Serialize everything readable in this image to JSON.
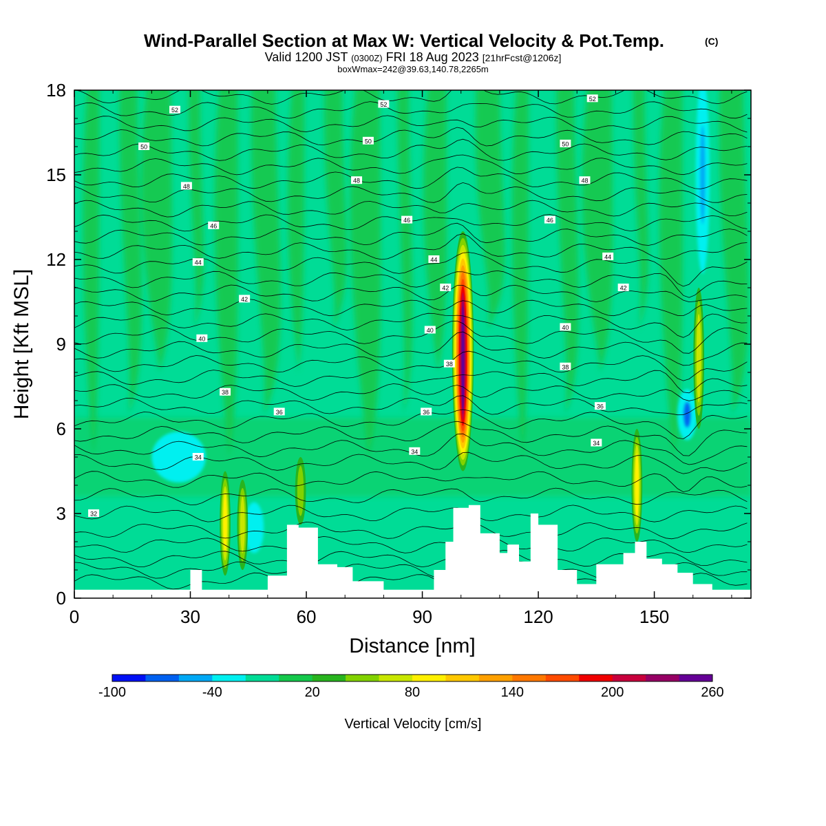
{
  "chart_data": {
    "type": "heatmap",
    "title": "Wind-Parallel Section at Max W: Vertical Velocity & Pot.Temp.",
    "title_mark": "(C)",
    "subtitle": {
      "valid": "Valid 1200 JST",
      "utc": "(0300Z)",
      "date": "FRI 18 Aug 2023",
      "forecast": "[21hrFcst@1206z]"
    },
    "box_wmax": "boxWmax=242@39.63,140.78,2265m",
    "xlabel": "Distance [nm]",
    "ylabel": "Height [Kft MSL]",
    "xlim": [
      0,
      175
    ],
    "ylim": [
      0,
      18
    ],
    "x_ticks": [
      "0",
      "30",
      "60",
      "90",
      "120",
      "150"
    ],
    "y_ticks": [
      "0",
      "3",
      "6",
      "9",
      "12",
      "15",
      "18"
    ],
    "colorbar": {
      "label": "Vertical Velocity [cm/s]",
      "min": -100,
      "max": 260,
      "step": 20,
      "tick_labels": [
        "-100",
        "-40",
        "20",
        "80",
        "140",
        "200",
        "260"
      ],
      "colors": [
        "#0010f5",
        "#0060f0",
        "#00a8f5",
        "#00f0f0",
        "#00dc96",
        "#14c84b",
        "#28b41e",
        "#82d200",
        "#c8e600",
        "#fff000",
        "#ffc800",
        "#ffa000",
        "#ff7800",
        "#ff4b00",
        "#f00000",
        "#c8003c",
        "#960064",
        "#640096"
      ]
    },
    "background_range": "0 to 20",
    "terrain_profile": {
      "x": [
        0,
        20,
        30,
        33,
        38,
        44,
        50,
        55,
        58,
        63,
        68,
        72,
        80,
        85,
        90,
        93,
        96,
        98,
        102,
        105,
        110,
        112,
        115,
        118,
        120,
        125,
        130,
        135,
        142,
        145,
        148,
        152,
        156,
        160,
        165,
        175
      ],
      "z": [
        0.3,
        0.3,
        1.0,
        0.3,
        0.3,
        0.3,
        0.8,
        2.6,
        2.5,
        1.2,
        1.1,
        0.6,
        0.3,
        0.3,
        0.3,
        1.0,
        2.0,
        3.2,
        3.3,
        2.3,
        1.6,
        1.9,
        1.3,
        3.0,
        2.6,
        1.0,
        0.5,
        1.2,
        1.6,
        2.0,
        1.4,
        1.2,
        0.9,
        0.5,
        0.3,
        0.3
      ]
    },
    "updrafts": [
      {
        "x": 100.5,
        "z_bottom": 4.5,
        "z_top": 13.0,
        "peak": 242,
        "peak_z": 8.5
      },
      {
        "x": 39.0,
        "z_bottom": 0.8,
        "z_top": 4.5,
        "peak": 80
      },
      {
        "x": 43.5,
        "z_bottom": 1.0,
        "z_top": 4.2,
        "peak": 60
      },
      {
        "x": 58.5,
        "z_bottom": 2.6,
        "z_top": 5.0,
        "peak": 50
      },
      {
        "x": 145.5,
        "z_bottom": 2.0,
        "z_top": 6.0,
        "peak": 90
      },
      {
        "x": 161.5,
        "z_bottom": 6.0,
        "z_top": 11.0,
        "peak": 60
      }
    ],
    "downdrafts": [
      {
        "x": 27.0,
        "z": 5.0,
        "peak": -40
      },
      {
        "x": 46.5,
        "z": 2.5,
        "peak": -30
      },
      {
        "x": 158.5,
        "z": 6.5,
        "peak": -80
      },
      {
        "x": 162.5,
        "z": 15.0,
        "peak": -60
      }
    ],
    "theta_contours": [
      {
        "label": "32",
        "x": 5,
        "z": 3.0
      },
      {
        "label": "34",
        "x": 32,
        "z": 5.0
      },
      {
        "label": "34",
        "x": 88,
        "z": 5.2
      },
      {
        "label": "34",
        "x": 135,
        "z": 5.5
      },
      {
        "label": "36",
        "x": 53,
        "z": 6.6
      },
      {
        "label": "36",
        "x": 91,
        "z": 6.6
      },
      {
        "label": "36",
        "x": 136,
        "z": 6.8
      },
      {
        "label": "38",
        "x": 39,
        "z": 7.3
      },
      {
        "label": "38",
        "x": 97,
        "z": 8.3
      },
      {
        "label": "38",
        "x": 127,
        "z": 8.2
      },
      {
        "label": "40",
        "x": 33,
        "z": 9.2
      },
      {
        "label": "40",
        "x": 92,
        "z": 9.5
      },
      {
        "label": "40",
        "x": 127,
        "z": 9.6
      },
      {
        "label": "42",
        "x": 44,
        "z": 10.6
      },
      {
        "label": "42",
        "x": 96,
        "z": 11.0
      },
      {
        "label": "42",
        "x": 142,
        "z": 11.0
      },
      {
        "label": "44",
        "x": 32,
        "z": 11.9
      },
      {
        "label": "44",
        "x": 93,
        "z": 12.0
      },
      {
        "label": "44",
        "x": 138,
        "z": 12.1
      },
      {
        "label": "46",
        "x": 36,
        "z": 13.2
      },
      {
        "label": "46",
        "x": 86,
        "z": 13.4
      },
      {
        "label": "46",
        "x": 123,
        "z": 13.4
      },
      {
        "label": "48",
        "x": 29,
        "z": 14.6
      },
      {
        "label": "48",
        "x": 73,
        "z": 14.8
      },
      {
        "label": "48",
        "x": 132,
        "z": 14.8
      },
      {
        "label": "50",
        "x": 18,
        "z": 16.0
      },
      {
        "label": "50",
        "x": 76,
        "z": 16.2
      },
      {
        "label": "50",
        "x": 127,
        "z": 16.1
      },
      {
        "label": "52",
        "x": 26,
        "z": 17.3
      },
      {
        "label": "52",
        "x": 80,
        "z": 17.5
      },
      {
        "label": "52",
        "x": 134,
        "z": 17.7
      }
    ]
  }
}
